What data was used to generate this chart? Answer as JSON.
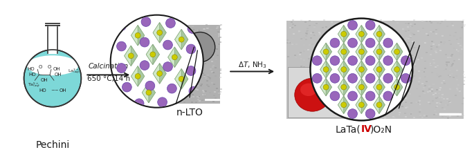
{
  "background_color": "#ffffff",
  "arrow1_text_line1": "Calcination",
  "arrow1_text_line2": "650 °C,14 h",
  "arrow2_text_line1": "ΔT, NH₃",
  "label_left": "Pechini",
  "label_mid": "n-LTO",
  "label_right_parts": [
    "LaTa(",
    "IV",
    ")O",
    "2",
    "N"
  ],
  "label_right_color_normal": "#1a1a1a",
  "label_right_color_iv": "#cc0000",
  "figsize": [
    6.85,
    2.2
  ],
  "dpi": 100,
  "flask_color": "#7dd8d8",
  "flask_outline": "#333333",
  "arrow_color": "#1a1a1a",
  "label_fontsize": 9,
  "arrow_fontsize": 7.5,
  "formula_fontsize": 10,
  "purple_atom_color": "#9966bb",
  "yellow_atom_color": "#c8c800",
  "green_oct_color": "#b8d4b0",
  "green_oct_edge": "#789870"
}
